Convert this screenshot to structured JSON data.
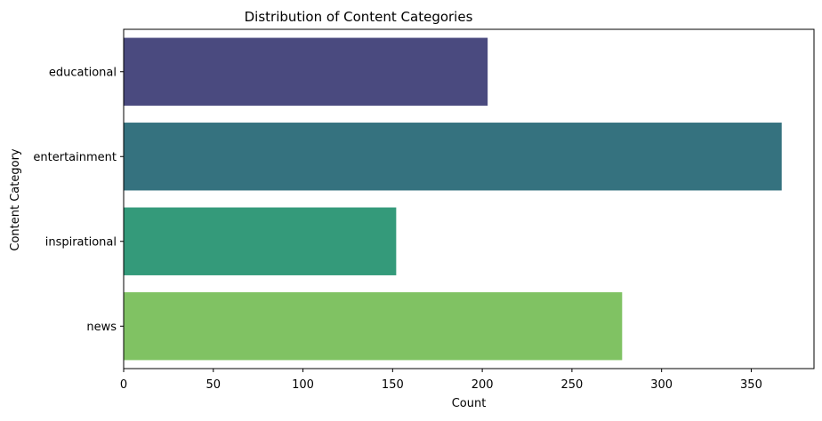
{
  "chart_data": {
    "type": "bar",
    "orientation": "horizontal",
    "title": "Distribution of Content Categories",
    "xlabel": "Count",
    "ylabel": "Content Category",
    "categories": [
      "educational",
      "entertainment",
      "inspirational",
      "news"
    ],
    "values": [
      203,
      367,
      152,
      278
    ],
    "colors": [
      "#4a4a7f",
      "#35727f",
      "#349a7a",
      "#80c263"
    ],
    "xlim": [
      0,
      385
    ],
    "xticks": [
      0,
      50,
      100,
      150,
      200,
      250,
      300,
      350
    ],
    "grid": false,
    "legend": "none"
  }
}
